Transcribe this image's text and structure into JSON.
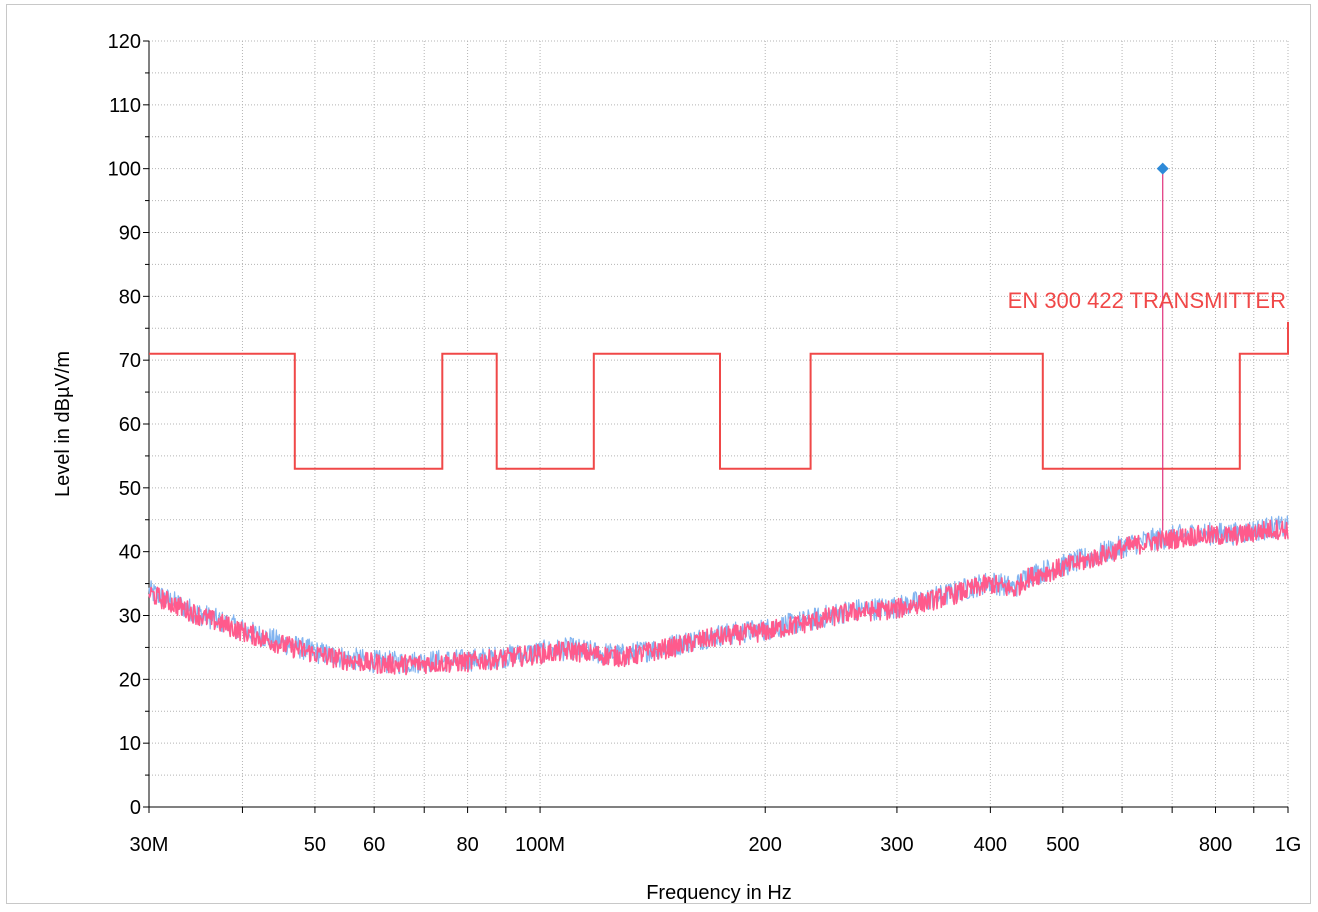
{
  "chart_data": {
    "type": "line",
    "xlabel": "Frequency in Hz",
    "ylabel": "Level in dBµV/m",
    "x_scale": "log",
    "xlim": [
      30,
      1000
    ],
    "ylim": [
      0,
      120
    ],
    "y_ticks": [
      0,
      10,
      20,
      30,
      40,
      50,
      60,
      70,
      80,
      90,
      100,
      110,
      120
    ],
    "x_ticks": [
      {
        "value": 30,
        "label": "30M"
      },
      {
        "value": 50,
        "label": "50"
      },
      {
        "value": 60,
        "label": "60"
      },
      {
        "value": 80,
        "label": "80"
      },
      {
        "value": 100,
        "label": "100M"
      },
      {
        "value": 200,
        "label": "200"
      },
      {
        "value": 300,
        "label": "300"
      },
      {
        "value": 400,
        "label": "400"
      },
      {
        "value": 500,
        "label": "500"
      },
      {
        "value": 800,
        "label": "800"
      },
      {
        "value": 1000,
        "label": "1G"
      }
    ],
    "grid": true,
    "limit_line": {
      "name": "EN 300 422 TRANSMITTER",
      "color": "#f04848",
      "x": [
        30,
        47,
        47,
        74,
        74,
        87.5,
        87.5,
        118,
        118,
        174,
        174,
        230,
        230,
        470,
        470,
        862,
        862,
        1000,
        1000
      ],
      "y": [
        71,
        71,
        53,
        53,
        71,
        71,
        53,
        53,
        71,
        71,
        53,
        53,
        71,
        71,
        53,
        53,
        71,
        71,
        76
      ]
    },
    "series": [
      {
        "color": "#ff5a8c",
        "secondary_color": "#82b4f0",
        "x": [
          30,
          35,
          40,
          45,
          50,
          55,
          60,
          65,
          70,
          80,
          90,
          100,
          110,
          120,
          130,
          150,
          170,
          200,
          230,
          260,
          300,
          350,
          400,
          430,
          450,
          500,
          550,
          600,
          650,
          700,
          750,
          800,
          850,
          900,
          950,
          1000
        ],
        "y": [
          33.5,
          30,
          27.5,
          25.5,
          24,
          23,
          22.5,
          22.3,
          22.5,
          22.7,
          23.3,
          24,
          24.5,
          23.8,
          23.5,
          25,
          26.5,
          27.5,
          29,
          30.5,
          31,
          33,
          35,
          34,
          36,
          37.5,
          39,
          40.5,
          41.5,
          42,
          42.5,
          42.5,
          42.5,
          43,
          43.5,
          43.5
        ]
      }
    ],
    "marker": {
      "x": 680,
      "y": 100,
      "color": "#2e8ad8",
      "stem_color": "#e0307a"
    }
  }
}
